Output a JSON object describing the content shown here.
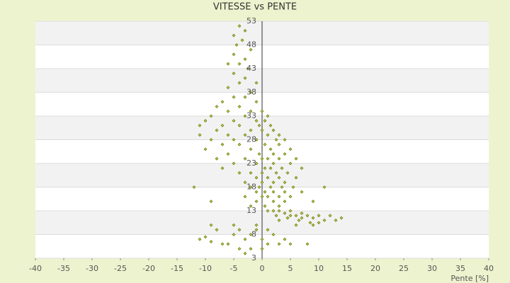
{
  "chart_data": {
    "type": "scatter",
    "title": "VITESSE vs PENTE",
    "x_label": "Pente [%]",
    "color": "#6b7a00",
    "xlim": [
      -40,
      40
    ],
    "xticks": [
      -40,
      -35,
      -30,
      -25,
      -20,
      -15,
      -10,
      -5,
      0,
      5,
      10,
      15,
      20,
      25,
      30,
      35,
      40
    ],
    "ylim": [
      3,
      53
    ],
    "yticks": [
      3,
      8,
      13,
      18,
      23,
      28,
      33,
      38,
      43,
      48,
      53
    ],
    "x": [
      -4,
      -3,
      -5,
      -3.5,
      -4.5,
      -2,
      -5,
      -3,
      -6,
      -4,
      -2.5,
      -5,
      -3,
      -1,
      -4,
      -6,
      -2,
      -5,
      -3,
      -7,
      -1,
      -4,
      -8,
      -2,
      -6,
      -9,
      -3,
      -5,
      -10,
      -1,
      -7,
      -11,
      -4,
      -2,
      -8,
      -6,
      -11,
      -3,
      -9,
      -5,
      -1,
      -7,
      -4,
      -10,
      -2,
      -6,
      -8,
      -3,
      -5,
      -7,
      -4,
      0,
      1,
      0.5,
      -0.5,
      1.5,
      2,
      0,
      3,
      1,
      -1,
      2.5,
      4,
      0.5,
      3,
      1.5,
      5,
      -0.5,
      2,
      4,
      0,
      1,
      3,
      6,
      -1,
      2,
      5,
      0.5,
      1.5,
      3.5,
      7,
      -2,
      0,
      2.5,
      4.5,
      -1,
      1,
      3,
      6,
      -3,
      0,
      2,
      4,
      -2,
      -0.5,
      1.5,
      3.5,
      5.5,
      -1,
      0.5,
      2,
      4,
      7,
      -3,
      0,
      1,
      3,
      5,
      -1,
      2,
      4,
      9,
      -2,
      0.5,
      3,
      1,
      2,
      3,
      4,
      5,
      6,
      7,
      8,
      9,
      10,
      11,
      12,
      13,
      14,
      2.5,
      4.5,
      6.5,
      8.5,
      3,
      5,
      7,
      10,
      6,
      9,
      -11,
      -10,
      -9,
      -7,
      -5,
      -4,
      -6,
      -3,
      -2,
      -1,
      0,
      1,
      2,
      3,
      4,
      -8,
      -9,
      5,
      8,
      -4,
      -3,
      -2,
      0,
      1,
      -12,
      -9,
      11,
      -1,
      -5
    ],
    "values": [
      52,
      51,
      50,
      49,
      48,
      47,
      46,
      45,
      44,
      44,
      43,
      42,
      41,
      40,
      40,
      39,
      38,
      37,
      37,
      36,
      36,
      35,
      35,
      34,
      34,
      33,
      33,
      32,
      32,
      32,
      31,
      31,
      31,
      30,
      30,
      29,
      29,
      29,
      28,
      28,
      28,
      27,
      27,
      26,
      26,
      25,
      24,
      24,
      23,
      22,
      21,
      34,
      33,
      32,
      31,
      31,
      30,
      30,
      29,
      29,
      28,
      28,
      28,
      27,
      27,
      26,
      26,
      25,
      25,
      25,
      24,
      24,
      24,
      24,
      23,
      23,
      23,
      22,
      22,
      22,
      22,
      21,
      21,
      21,
      21,
      20,
      20,
      20,
      20,
      19,
      19,
      19,
      19,
      18,
      18,
      18,
      18,
      18,
      17,
      17,
      17,
      17,
      17,
      16,
      16,
      16,
      16,
      16,
      15,
      15,
      15,
      15,
      14,
      14,
      14,
      13,
      13,
      13,
      12.5,
      13,
      12,
      12.5,
      12,
      11.5,
      12,
      11,
      12,
      11,
      11.5,
      12,
      11.5,
      11,
      10.5,
      11,
      12,
      11.5,
      10.5,
      10,
      10,
      7,
      7.5,
      6.5,
      6,
      8,
      5,
      6,
      7,
      8,
      9,
      7,
      6,
      8,
      6,
      7,
      9,
      10,
      6,
      6,
      9,
      4,
      5,
      5,
      9,
      18,
      15,
      18,
      10,
      10
    ]
  }
}
